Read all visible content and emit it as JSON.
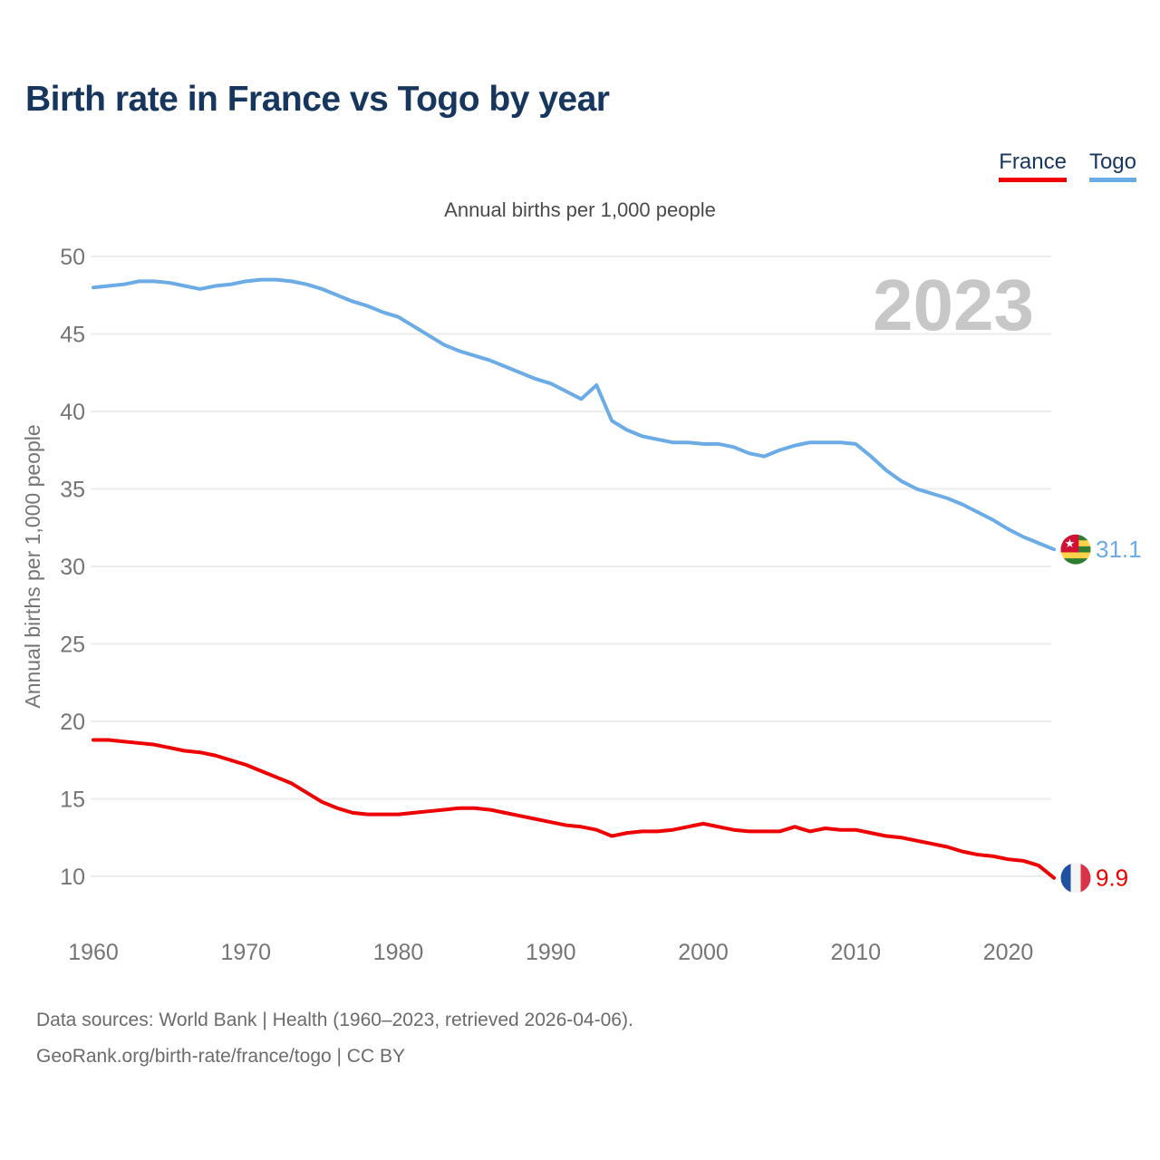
{
  "page": {
    "title": "Birth rate in France vs Togo by year",
    "subtitle": "Annual births per 1,000 people",
    "watermark": "2023",
    "footer_line1": "Data sources: World Bank | Health (1960–2023, retrieved 2026-04-06).",
    "footer_line2": "GeoRank.org/birth-rate/france/togo | CC BY"
  },
  "legend": [
    {
      "label": "France",
      "color": "#ee0000"
    },
    {
      "label": "Togo",
      "color": "#6babe6"
    }
  ],
  "colors": {
    "title": "#17365d",
    "axis_text": "#757575",
    "gridline": "#ececec",
    "watermark": "#c7c7c7",
    "footer": "#6b6b6b"
  },
  "chart_data": {
    "type": "line",
    "title": "Annual births per 1,000 people",
    "xlabel": "",
    "ylabel": "Annual births per 1,000 people",
    "grid": true,
    "legend_position": "top-right",
    "x_range": [
      1960,
      2023
    ],
    "ylim": [
      10,
      50
    ],
    "x_ticks": [
      1960,
      1970,
      1980,
      1990,
      2000,
      2010,
      2020
    ],
    "y_ticks": [
      50,
      45,
      40,
      35,
      30,
      25,
      20,
      15,
      10
    ],
    "x": [
      1960,
      1961,
      1962,
      1963,
      1964,
      1965,
      1966,
      1967,
      1968,
      1969,
      1970,
      1971,
      1972,
      1973,
      1974,
      1975,
      1976,
      1977,
      1978,
      1979,
      1980,
      1981,
      1982,
      1983,
      1984,
      1985,
      1986,
      1987,
      1988,
      1989,
      1990,
      1991,
      1992,
      1993,
      1994,
      1995,
      1996,
      1997,
      1998,
      1999,
      2000,
      2001,
      2002,
      2003,
      2004,
      2005,
      2006,
      2007,
      2008,
      2009,
      2010,
      2011,
      2012,
      2013,
      2014,
      2015,
      2016,
      2017,
      2018,
      2019,
      2020,
      2021,
      2022,
      2023
    ],
    "series": [
      {
        "name": "Togo",
        "color": "#6babe6",
        "end_label": "31.1",
        "flag_icon": "togo-flag-icon",
        "values": [
          48.0,
          48.1,
          48.2,
          48.4,
          48.4,
          48.3,
          48.1,
          47.9,
          48.1,
          48.2,
          48.4,
          48.5,
          48.5,
          48.4,
          48.2,
          47.9,
          47.5,
          47.1,
          46.8,
          46.4,
          46.1,
          45.5,
          44.9,
          44.3,
          43.9,
          43.6,
          43.3,
          42.9,
          42.5,
          42.1,
          41.8,
          41.3,
          40.8,
          41.7,
          39.4,
          38.8,
          38.4,
          38.2,
          38.0,
          38.0,
          37.9,
          37.9,
          37.7,
          37.3,
          37.1,
          37.5,
          37.8,
          38.0,
          38.0,
          38.0,
          37.9,
          37.1,
          36.2,
          35.5,
          35.0,
          34.7,
          34.4,
          34.0,
          33.5,
          33.0,
          32.4,
          31.9,
          31.5,
          31.1
        ]
      },
      {
        "name": "France",
        "color": "#ee0000",
        "end_label": "9.9",
        "flag_icon": "france-flag-icon",
        "values": [
          18.8,
          18.8,
          18.7,
          18.6,
          18.5,
          18.3,
          18.1,
          18.0,
          17.8,
          17.5,
          17.2,
          16.8,
          16.4,
          16.0,
          15.4,
          14.8,
          14.4,
          14.1,
          14.0,
          14.0,
          14.0,
          14.1,
          14.2,
          14.3,
          14.4,
          14.4,
          14.3,
          14.1,
          13.9,
          13.7,
          13.5,
          13.3,
          13.2,
          13.0,
          12.6,
          12.8,
          12.9,
          12.9,
          13.0,
          13.2,
          13.4,
          13.2,
          13.0,
          12.9,
          12.9,
          12.9,
          13.2,
          12.9,
          13.1,
          13.0,
          13.0,
          12.8,
          12.6,
          12.5,
          12.3,
          12.1,
          11.9,
          11.6,
          11.4,
          11.3,
          11.1,
          11.0,
          10.7,
          9.9
        ]
      }
    ]
  }
}
